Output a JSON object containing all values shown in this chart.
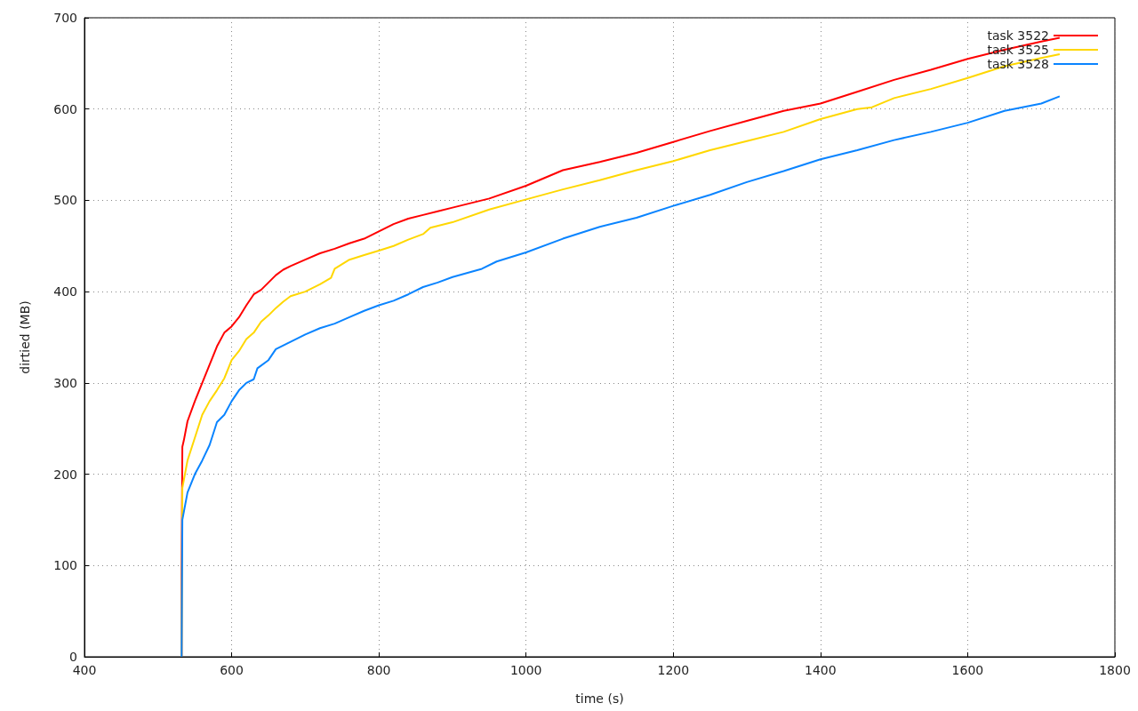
{
  "chart_data": {
    "type": "line",
    "xlabel": "time (s)",
    "ylabel": "dirtied (MB)",
    "xlim": [
      400,
      1800
    ],
    "xticks": [
      400,
      600,
      800,
      1000,
      1200,
      1400,
      1600,
      1800
    ],
    "ylim": [
      0,
      700
    ],
    "yticks": [
      0,
      100,
      200,
      300,
      400,
      500,
      600,
      700
    ],
    "grid": true,
    "legend": "top right",
    "marker": "none",
    "line_style": "solid",
    "series": [
      {
        "name": "task 3522",
        "color": "#ff0000",
        "x": [
          532,
          532,
          533,
          535,
          540,
          550,
          560,
          570,
          580,
          590,
          600,
          610,
          620,
          630,
          640,
          650,
          660,
          670,
          680,
          700,
          720,
          740,
          760,
          780,
          800,
          820,
          840,
          860,
          880,
          900,
          950,
          1000,
          1050,
          1100,
          1150,
          1200,
          1250,
          1300,
          1350,
          1400,
          1450,
          1500,
          1550,
          1600,
          1650,
          1700,
          1725
        ],
        "values": [
          0,
          90,
          230,
          237,
          258,
          280,
          300,
          320,
          340,
          355,
          362,
          372,
          385,
          397,
          402,
          410,
          418,
          424,
          428,
          435,
          442,
          447,
          453,
          458,
          466,
          474,
          480,
          484,
          488,
          492,
          502,
          516,
          533,
          542,
          552,
          564,
          576,
          587,
          598,
          606,
          619,
          632,
          643,
          655,
          665,
          674,
          678
        ]
      },
      {
        "name": "task 3525",
        "color": "#ffd700",
        "x": [
          532,
          533,
          540,
          550,
          560,
          570,
          580,
          590,
          600,
          610,
          620,
          630,
          640,
          650,
          660,
          670,
          680,
          700,
          720,
          735,
          740,
          760,
          780,
          800,
          820,
          840,
          860,
          870,
          900,
          950,
          1000,
          1050,
          1100,
          1150,
          1200,
          1250,
          1300,
          1350,
          1400,
          1450,
          1470,
          1500,
          1550,
          1600,
          1650,
          1700,
          1725
        ],
        "values": [
          0,
          185,
          215,
          240,
          265,
          280,
          292,
          305,
          325,
          335,
          348,
          355,
          367,
          374,
          382,
          389,
          395,
          400,
          408,
          415,
          425,
          435,
          440,
          445,
          450,
          457,
          463,
          470,
          476,
          490,
          501,
          512,
          522,
          533,
          543,
          555,
          565,
          575,
          589,
          600,
          602,
          612,
          622,
          634,
          647,
          656,
          660
        ]
      },
      {
        "name": "task 3528",
        "color": "#0a84ff",
        "x": [
          532,
          533,
          540,
          550,
          560,
          570,
          580,
          590,
          600,
          610,
          620,
          630,
          635,
          650,
          660,
          680,
          700,
          720,
          740,
          760,
          780,
          800,
          820,
          840,
          860,
          880,
          900,
          940,
          960,
          1000,
          1050,
          1100,
          1150,
          1200,
          1250,
          1300,
          1350,
          1400,
          1450,
          1500,
          1550,
          1600,
          1650,
          1700,
          1725
        ],
        "values": [
          0,
          150,
          180,
          200,
          215,
          232,
          257,
          265,
          280,
          292,
          300,
          304,
          316,
          325,
          337,
          345,
          353,
          360,
          365,
          372,
          379,
          385,
          390,
          397,
          405,
          410,
          416,
          425,
          433,
          443,
          458,
          471,
          481,
          494,
          506,
          520,
          532,
          545,
          555,
          566,
          575,
          585,
          598,
          606,
          614
        ]
      }
    ]
  }
}
